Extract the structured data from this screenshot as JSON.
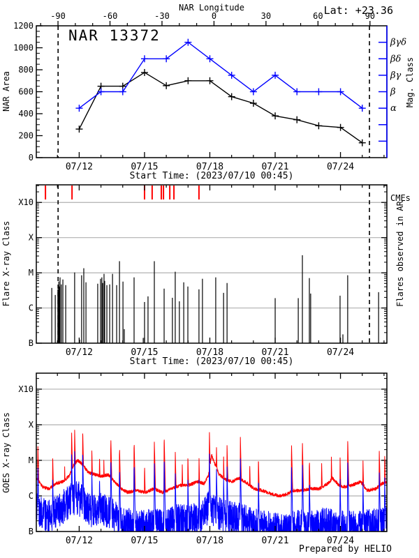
{
  "page": {
    "lat_label": "Lat: +23.36",
    "prepared_by": "Prepared by HELIO",
    "background": "#ffffff"
  },
  "colors": {
    "axis": "#000000",
    "series_black": "#000000",
    "series_blue": "#0000ff",
    "red": "#ff0000",
    "grid": "#b0b0b0"
  },
  "time_axis": {
    "subtitle": "Start Time: (2023/07/10 00:45)",
    "day_min": 0,
    "day_max": 16.1,
    "major_ticks": [
      {
        "label": "07/12",
        "day": 1.969
      },
      {
        "label": "07/15",
        "day": 4.969
      },
      {
        "label": "07/18",
        "day": 7.969
      },
      {
        "label": "07/21",
        "day": 10.969
      },
      {
        "label": "07/24",
        "day": 13.969
      }
    ],
    "minor_start": 0.969,
    "minor_step": 1,
    "limb_crossing_days": [
      1.0,
      15.3
    ]
  },
  "chart_data": [
    {
      "panel": "nar-area",
      "type": "line",
      "title": "NAR 13372",
      "top_axis": {
        "label": "NAR Longitude",
        "major_lons": [
          -90,
          -60,
          -30,
          0,
          30,
          60,
          90
        ],
        "minor_step_lon": 10,
        "lon0_day": 8.16,
        "days_per_deg": 0.0796
      },
      "y_axis": {
        "label": "NAR Area",
        "min": 0,
        "max": 1200,
        "major_step": 200,
        "minor_step": 50
      },
      "right_axis": {
        "label": "Mag. Class",
        "ticks": [
          {
            "value": 150,
            "label": ""
          },
          {
            "value": 300,
            "label": ""
          },
          {
            "value": 450,
            "label": "α"
          },
          {
            "value": 600,
            "label": "β"
          },
          {
            "value": 750,
            "label": "βγ"
          },
          {
            "value": 900,
            "label": "βδ"
          },
          {
            "value": 1050,
            "label": "βγδ"
          }
        ]
      },
      "series": [
        {
          "name": "nar-area-series",
          "color_key": "series_black",
          "marker": "plus",
          "days": [
            1.97,
            2.97,
            3.97,
            4.97,
            5.97,
            6.97,
            7.97,
            8.97,
            9.97,
            10.97,
            11.97,
            12.97,
            13.97,
            14.97
          ],
          "values": [
            260,
            650,
            650,
            775,
            655,
            700,
            700,
            555,
            495,
            380,
            345,
            290,
            275,
            135
          ]
        },
        {
          "name": "mag-class-series",
          "color_key": "series_blue",
          "marker": "plus",
          "days": [
            1.97,
            2.97,
            3.97,
            4.97,
            5.97,
            6.97,
            7.97,
            8.97,
            9.97,
            10.97,
            11.97,
            12.97,
            13.97,
            14.97
          ],
          "values": [
            450,
            600,
            600,
            900,
            900,
            1050,
            900,
            750,
            600,
            750,
            600,
            600,
            600,
            450
          ],
          "classes": [
            "α",
            "β",
            "β",
            "βδ",
            "βδ",
            "βγδ",
            "βδ",
            "βγ",
            "β",
            "βγ",
            "β",
            "β",
            "β",
            "α"
          ]
        }
      ]
    },
    {
      "panel": "flares",
      "type": "event",
      "y_axis": {
        "label": "Flare X-ray Class",
        "decade_labels": [
          "B",
          "C",
          "M",
          "X",
          "X10"
        ],
        "log_min": -7,
        "log_top": -2.5
      },
      "right_label": "Flares observed in AR",
      "cme": {
        "label": "CMEs",
        "days": [
          0.42,
          1.64,
          4.97,
          5.32,
          5.74,
          5.84,
          6.13,
          6.32,
          7.47
        ]
      },
      "flares": [
        [
          0.71,
          -5.43
        ],
        [
          0.87,
          -5.63
        ],
        [
          0.99,
          -5.47
        ],
        [
          1.03,
          -5.25
        ],
        [
          1.06,
          -5.39
        ],
        [
          1.09,
          -5.13
        ],
        [
          1.15,
          -5.33
        ],
        [
          1.22,
          -5.19
        ],
        [
          1.35,
          -5.35
        ],
        [
          1.76,
          -4.99
        ],
        [
          1.99,
          -6.9
        ],
        [
          2.08,
          -5.07
        ],
        [
          2.18,
          -4.87
        ],
        [
          2.28,
          -5.27
        ],
        [
          2.82,
          -5.31
        ],
        [
          2.95,
          -5.17
        ],
        [
          3.01,
          -5.13
        ],
        [
          3.05,
          -5.29
        ],
        [
          3.11,
          -5.03
        ],
        [
          3.14,
          -5.23
        ],
        [
          3.24,
          -5.35
        ],
        [
          3.37,
          -5.33
        ],
        [
          3.5,
          -5.03
        ],
        [
          3.69,
          -5.35
        ],
        [
          3.82,
          -4.67
        ],
        [
          3.98,
          -5.25
        ],
        [
          4.04,
          -6.6
        ],
        [
          4.49,
          -5.13
        ],
        [
          4.91,
          -6.85
        ],
        [
          4.97,
          -5.83
        ],
        [
          5.13,
          -5.67
        ],
        [
          5.42,
          -4.67
        ],
        [
          5.87,
          -5.45
        ],
        [
          6.25,
          -5.71
        ],
        [
          6.38,
          -4.97
        ],
        [
          6.57,
          -5.81
        ],
        [
          6.77,
          -5.27
        ],
        [
          6.96,
          -5.39
        ],
        [
          7.47,
          -5.47
        ],
        [
          7.63,
          -5.17
        ],
        [
          8.24,
          -5.13
        ],
        [
          8.6,
          -5.57
        ],
        [
          8.76,
          -5.29
        ],
        [
          10.97,
          -5.72
        ],
        [
          12.03,
          -5.72
        ],
        [
          12.22,
          -4.5
        ],
        [
          12.54,
          -5.15
        ],
        [
          12.6,
          -5.59
        ],
        [
          13.95,
          -5.65
        ],
        [
          14.08,
          -6.75
        ],
        [
          14.3,
          -5.07
        ],
        [
          15.72,
          -5.55
        ]
      ]
    },
    {
      "panel": "goes",
      "type": "timeseries",
      "y_axis": {
        "label": "GOES X-ray Class",
        "decade_labels": [
          "B",
          "C",
          "M",
          "X",
          "X10"
        ],
        "log_min": -7,
        "log_top": -2.55
      },
      "series": [
        {
          "name": "goes-long-channel",
          "color_key": "red",
          "noise": 0.09,
          "decay": 26,
          "base": [
            [
              0,
              -5.5
            ],
            [
              0.3,
              -5.75
            ],
            [
              0.6,
              -5.8
            ],
            [
              0.9,
              -5.65
            ],
            [
              1.2,
              -5.6
            ],
            [
              1.5,
              -5.45
            ],
            [
              1.7,
              -5.15
            ],
            [
              1.9,
              -5.0
            ],
            [
              2.1,
              -5.1
            ],
            [
              2.4,
              -5.35
            ],
            [
              2.7,
              -5.4
            ],
            [
              3.0,
              -5.45
            ],
            [
              3.3,
              -5.4
            ],
            [
              3.6,
              -5.6
            ],
            [
              3.9,
              -5.8
            ],
            [
              4.2,
              -5.9
            ],
            [
              4.6,
              -5.85
            ],
            [
              5.0,
              -5.9
            ],
            [
              5.4,
              -5.8
            ],
            [
              5.8,
              -5.9
            ],
            [
              6.2,
              -5.8
            ],
            [
              6.6,
              -5.7
            ],
            [
              7.0,
              -5.7
            ],
            [
              7.4,
              -5.6
            ],
            [
              7.7,
              -5.65
            ],
            [
              7.9,
              -5.45
            ],
            [
              8.05,
              -4.85
            ],
            [
              8.2,
              -5.1
            ],
            [
              8.4,
              -5.4
            ],
            [
              8.7,
              -5.55
            ],
            [
              9.0,
              -5.6
            ],
            [
              9.3,
              -5.5
            ],
            [
              9.7,
              -5.65
            ],
            [
              10.0,
              -5.8
            ],
            [
              10.4,
              -5.85
            ],
            [
              10.8,
              -5.95
            ],
            [
              11.2,
              -6.0
            ],
            [
              11.5,
              -5.95
            ],
            [
              11.8,
              -5.85
            ],
            [
              12.2,
              -5.85
            ],
            [
              12.6,
              -5.8
            ],
            [
              13.0,
              -5.8
            ],
            [
              13.4,
              -5.65
            ],
            [
              13.6,
              -5.5
            ],
            [
              13.9,
              -5.7
            ],
            [
              14.2,
              -5.75
            ],
            [
              14.5,
              -5.7
            ],
            [
              14.9,
              -5.6
            ],
            [
              15.2,
              -5.85
            ],
            [
              15.6,
              -5.8
            ],
            [
              15.9,
              -5.65
            ],
            [
              16.1,
              -5.6
            ]
          ],
          "spikes": [
            [
              0.07,
              -4.55
            ],
            [
              0.75,
              -4.85
            ],
            [
              1.3,
              -5.15
            ],
            [
              1.62,
              -4.15
            ],
            [
              1.76,
              -4.12
            ],
            [
              1.95,
              -4.95
            ],
            [
              2.13,
              -4.15
            ],
            [
              2.55,
              -4.7
            ],
            [
              2.9,
              -4.85
            ],
            [
              3.1,
              -4.95
            ],
            [
              3.42,
              -4.35
            ],
            [
              3.82,
              -4.6
            ],
            [
              4.49,
              -4.45
            ],
            [
              4.97,
              -5.1
            ],
            [
              5.42,
              -4.45
            ],
            [
              5.87,
              -4.3
            ],
            [
              6.38,
              -4.75
            ],
            [
              6.7,
              -5.05
            ],
            [
              6.96,
              -4.85
            ],
            [
              7.47,
              -4.9
            ],
            [
              7.95,
              -4.18
            ],
            [
              8.27,
              -4.55
            ],
            [
              8.6,
              -4.85
            ],
            [
              8.76,
              -4.55
            ],
            [
              9.37,
              -4.33
            ],
            [
              9.8,
              -5.05
            ],
            [
              10.2,
              -4.9
            ],
            [
              11.72,
              -4.5
            ],
            [
              12.22,
              -4.45
            ],
            [
              12.54,
              -4.95
            ],
            [
              13.1,
              -5.0
            ],
            [
              13.55,
              -4.9
            ],
            [
              13.95,
              -4.9
            ],
            [
              14.3,
              -4.4
            ],
            [
              15.0,
              -4.95
            ],
            [
              15.75,
              -4.7
            ],
            [
              16.0,
              -4.85
            ]
          ]
        },
        {
          "name": "goes-short-channel",
          "color_key": "series_blue",
          "noise": 0.95,
          "decay": 30,
          "base": [
            [
              0,
              -6.35
            ],
            [
              0.5,
              -6.6
            ],
            [
              1.0,
              -6.45
            ],
            [
              1.5,
              -6.15
            ],
            [
              1.8,
              -6.05
            ],
            [
              2.1,
              -6.15
            ],
            [
              2.5,
              -6.4
            ],
            [
              3.0,
              -6.35
            ],
            [
              3.5,
              -6.55
            ],
            [
              4.0,
              -6.8
            ],
            [
              4.5,
              -6.85
            ],
            [
              5.0,
              -6.85
            ],
            [
              5.5,
              -6.85
            ],
            [
              6.0,
              -6.8
            ],
            [
              6.5,
              -6.7
            ],
            [
              7.0,
              -6.7
            ],
            [
              7.5,
              -6.65
            ],
            [
              7.95,
              -6.25
            ],
            [
              8.2,
              -6.45
            ],
            [
              8.7,
              -6.6
            ],
            [
              9.2,
              -6.65
            ],
            [
              9.7,
              -6.75
            ],
            [
              10.2,
              -6.85
            ],
            [
              10.7,
              -6.9
            ],
            [
              11.2,
              -6.95
            ],
            [
              11.7,
              -6.9
            ],
            [
              12.2,
              -6.85
            ],
            [
              12.7,
              -6.9
            ],
            [
              13.2,
              -6.8
            ],
            [
              13.7,
              -6.85
            ],
            [
              14.2,
              -6.9
            ],
            [
              14.7,
              -6.9
            ],
            [
              15.2,
              -6.85
            ],
            [
              15.7,
              -6.8
            ],
            [
              16.1,
              -6.8
            ]
          ],
          "spikes": [
            [
              0.07,
              -5.15
            ],
            [
              0.75,
              -5.45
            ],
            [
              1.62,
              -4.75
            ],
            [
              1.76,
              -4.72
            ],
            [
              1.95,
              -5.55
            ],
            [
              2.13,
              -4.75
            ],
            [
              2.55,
              -5.3
            ],
            [
              2.9,
              -5.45
            ],
            [
              3.42,
              -4.95
            ],
            [
              3.82,
              -5.2
            ],
            [
              4.49,
              -5.05
            ],
            [
              5.42,
              -5.05
            ],
            [
              5.87,
              -4.9
            ],
            [
              6.38,
              -5.35
            ],
            [
              6.96,
              -5.45
            ],
            [
              7.47,
              -5.5
            ],
            [
              7.95,
              -4.78
            ],
            [
              8.27,
              -5.15
            ],
            [
              8.6,
              -5.45
            ],
            [
              8.76,
              -5.15
            ],
            [
              9.37,
              -4.93
            ],
            [
              10.2,
              -5.5
            ],
            [
              11.72,
              -5.1
            ],
            [
              12.22,
              -5.05
            ],
            [
              12.54,
              -5.55
            ],
            [
              13.95,
              -5.5
            ],
            [
              14.3,
              -5.0
            ],
            [
              15.0,
              -5.55
            ],
            [
              15.75,
              -5.3
            ],
            [
              16.0,
              -5.45
            ]
          ]
        }
      ]
    }
  ]
}
